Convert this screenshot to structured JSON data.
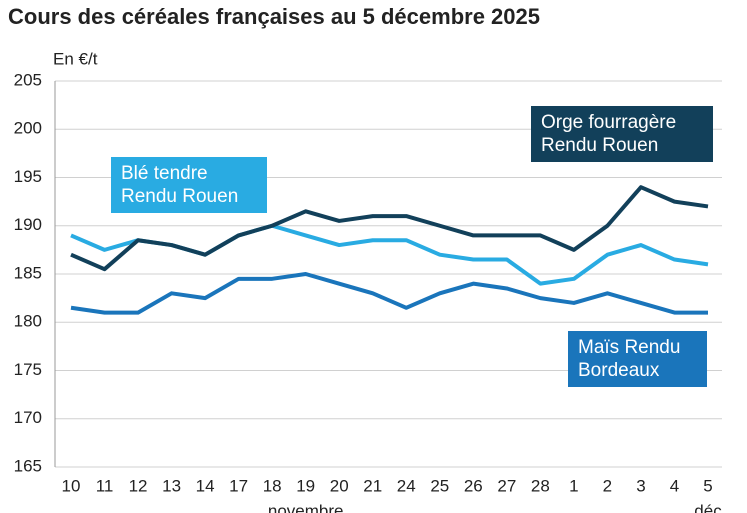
{
  "chart_data": {
    "type": "line",
    "title": "Cours des céréales françaises au 5 décembre 2025",
    "y_label": "En €/t",
    "categories": [
      "10",
      "11",
      "12",
      "13",
      "14",
      "17",
      "18",
      "19",
      "20",
      "21",
      "24",
      "25",
      "26",
      "27",
      "28",
      "1",
      "2",
      "3",
      "4",
      "5"
    ],
    "month_labels": [
      "novembre",
      "déc"
    ],
    "series": [
      {
        "name": "Orge fourragère Rendu Rouen",
        "color": "#12405a",
        "values": [
          187,
          185.5,
          188.5,
          188,
          187,
          189,
          190,
          191.5,
          190.5,
          191,
          191,
          190,
          189,
          189,
          189,
          187.5,
          190,
          194,
          192.5,
          192
        ]
      },
      {
        "name": "Blé tendre Rendu Rouen",
        "color": "#29abe2",
        "values": [
          189,
          187.5,
          188.5,
          188,
          187,
          189,
          190,
          189,
          188,
          188.5,
          188.5,
          187,
          186.5,
          186.5,
          184,
          184.5,
          187,
          188,
          186.5,
          186
        ]
      },
      {
        "name": "Maïs Rendu Bordeaux",
        "color": "#1a75bb",
        "values": [
          181.5,
          181,
          181,
          183,
          182.5,
          184.5,
          184.5,
          185,
          184,
          183,
          181.5,
          183,
          184,
          183.5,
          182.5,
          182,
          183,
          182,
          181,
          181
        ]
      }
    ],
    "ylim": [
      165,
      205
    ],
    "yticks": [
      165,
      170,
      175,
      180,
      185,
      190,
      195,
      200,
      205
    ],
    "grid": true
  }
}
